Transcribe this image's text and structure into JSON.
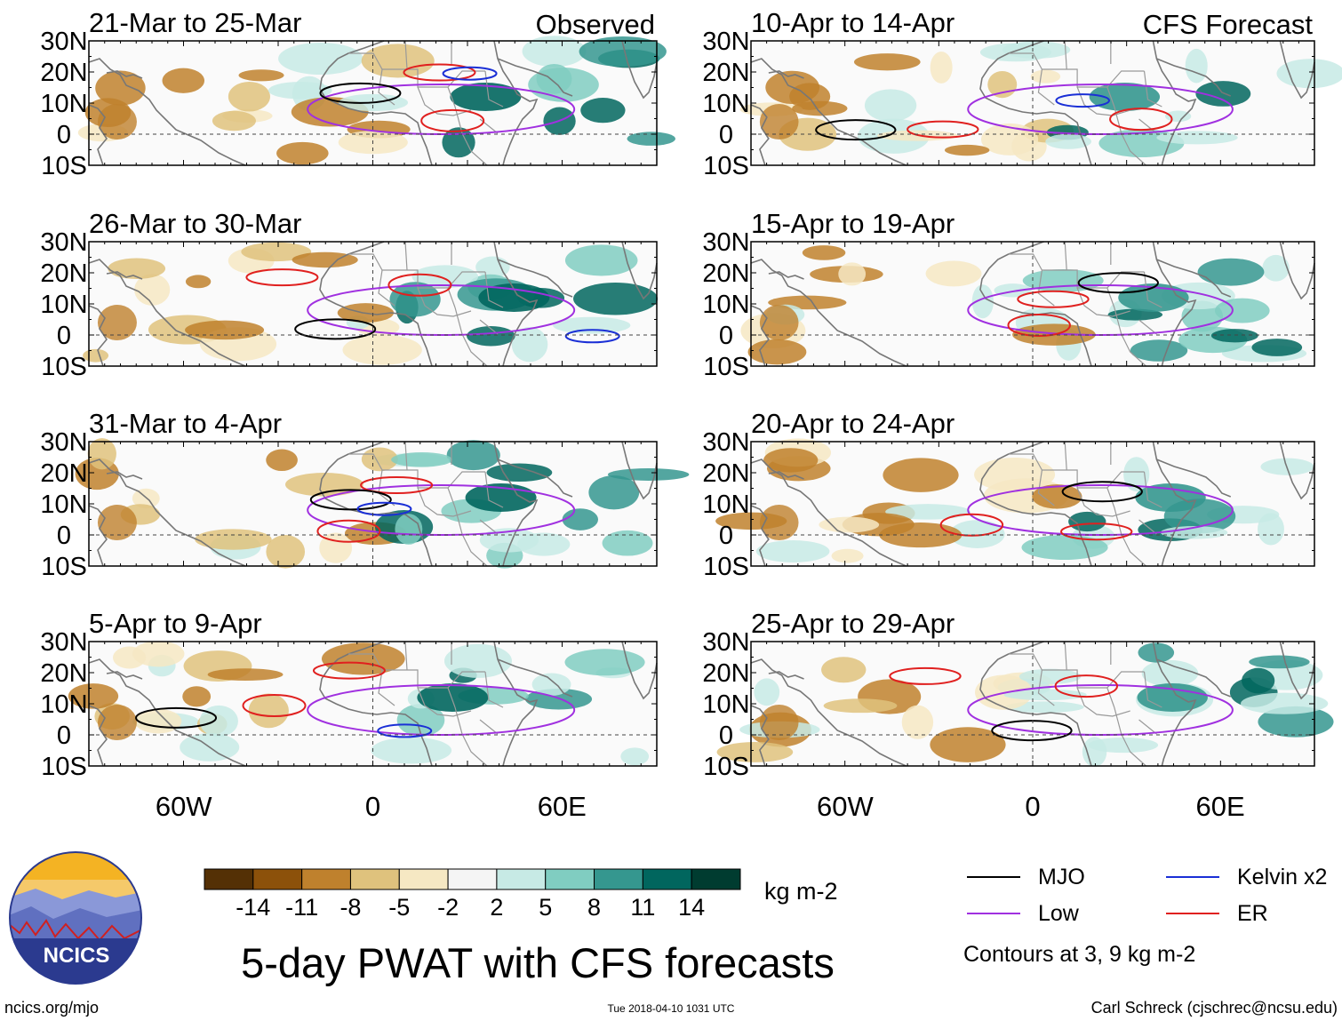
{
  "figure": {
    "title": "5-day PWAT with CFS forecasts",
    "observed_tag": "Observed",
    "forecast_tag": "CFS Forecast",
    "units": "kg m-2",
    "contour_note": "Contours at 3, 9 kg m-2",
    "site": "ncics.org/mjo",
    "timestamp": "Tue 2018-04-10 1031 UTC",
    "credit": "Carl Schreck (cjschrec@ncsu.edu)",
    "logo_text": "NCICS"
  },
  "axes": {
    "lat_labels": [
      "30N",
      "20N",
      "10N",
      "0",
      "10S"
    ],
    "lon_labels": [
      "60W",
      "0",
      "60E"
    ]
  },
  "panels": {
    "left": [
      {
        "period": "21-Mar to 25-Mar"
      },
      {
        "period": "26-Mar to 30-Mar"
      },
      {
        "period": "31-Mar to 4-Apr"
      },
      {
        "period": "5-Apr to 9-Apr"
      }
    ],
    "right": [
      {
        "period": "10-Apr to 14-Apr"
      },
      {
        "period": "15-Apr to 19-Apr"
      },
      {
        "period": "20-Apr to 24-Apr"
      },
      {
        "period": "25-Apr to 29-Apr"
      }
    ]
  },
  "colorbar": {
    "labels": [
      "-14",
      "-11",
      "-8",
      "-5",
      "-2",
      "2",
      "5",
      "8",
      "11",
      "14"
    ],
    "colors": [
      "#543005",
      "#8c510a",
      "#bf812d",
      "#dfc27d",
      "#f6e8c3",
      "#f5f5f5",
      "#c7eae5",
      "#80cdc1",
      "#35978f",
      "#01665e",
      "#003c30"
    ]
  },
  "legend": {
    "items": [
      {
        "label": "MJO",
        "color": "#000000"
      },
      {
        "label": "Kelvin x2",
        "color": "#1a2fd6"
      },
      {
        "label": "Low",
        "color": "#a030e0"
      },
      {
        "label": "ER",
        "color": "#e0201f"
      }
    ]
  }
}
